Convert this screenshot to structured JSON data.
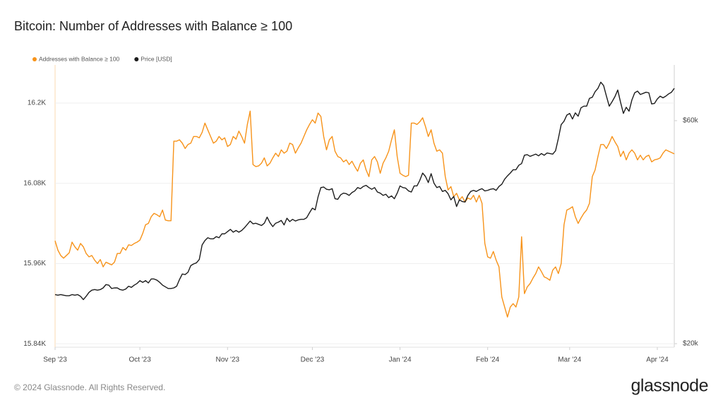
{
  "chart_data": {
    "type": "line",
    "title": "Bitcoin: Number of Addresses with Balance ≥ 100",
    "copyright": "© 2024 Glassnode. All Rights Reserved.",
    "brand": "glassnode",
    "grid": true,
    "legend": "top-left",
    "categories": [
      "Sep '23",
      null,
      null,
      null,
      null,
      null,
      null,
      null,
      null,
      null,
      null,
      null,
      null,
      null,
      null,
      null,
      null,
      null,
      null,
      null,
      null,
      null,
      null,
      null,
      null,
      null,
      null,
      null,
      null,
      null,
      "Oct '23",
      null,
      null,
      null,
      null,
      null,
      null,
      null,
      null,
      null,
      null,
      null,
      null,
      null,
      null,
      null,
      null,
      null,
      null,
      null,
      null,
      null,
      null,
      null,
      null,
      null,
      null,
      null,
      null,
      null,
      null,
      "Nov '23",
      null,
      null,
      null,
      null,
      null,
      null,
      null,
      null,
      null,
      null,
      null,
      null,
      null,
      null,
      null,
      null,
      null,
      null,
      null,
      null,
      null,
      null,
      null,
      null,
      null,
      null,
      null,
      null,
      null,
      "Dec '23",
      null,
      null,
      null,
      null,
      null,
      null,
      null,
      null,
      null,
      null,
      null,
      null,
      null,
      null,
      null,
      null,
      null,
      null,
      null,
      null,
      null,
      null,
      null,
      null,
      null,
      null,
      null,
      null,
      null,
      null,
      "Jan '24",
      null,
      null,
      null,
      null,
      null,
      null,
      null,
      null,
      null,
      null,
      null,
      null,
      null,
      null,
      null,
      null,
      null,
      null,
      null,
      null,
      null,
      null,
      null,
      null,
      null,
      null,
      null,
      null,
      null,
      null,
      "Feb '24",
      null,
      null,
      null,
      null,
      null,
      null,
      null,
      null,
      null,
      null,
      null,
      null,
      null,
      null,
      null,
      null,
      null,
      null,
      null,
      null,
      null,
      null,
      null,
      null,
      null,
      null,
      null,
      null,
      "Mar '24",
      null,
      null,
      null,
      null,
      null,
      null,
      null,
      null,
      null,
      null,
      null,
      null,
      null,
      null,
      null,
      null,
      null,
      null,
      null,
      null,
      null,
      null,
      null,
      null,
      null,
      null,
      null,
      null,
      null,
      null,
      "Apr '24",
      null,
      null,
      null,
      null,
      null,
      null
    ],
    "ylim": [
      15837,
      16257
    ],
    "yticks": [
      {
        "value": 15840,
        "label": "15.84K"
      },
      {
        "value": 15960,
        "label": "15.96K"
      },
      {
        "value": 16080,
        "label": "16.08K"
      },
      {
        "value": 16200,
        "label": "16.2K"
      }
    ],
    "y2lim": [
      19620,
      70000
    ],
    "y2ticks": [
      {
        "value": 20000,
        "label": "$20k"
      },
      {
        "value": 60000,
        "label": "$60k"
      }
    ],
    "series": [
      {
        "name": "Addresses with Balance ≥ 100",
        "color": "#f7931a",
        "values": [
          15994,
          15980,
          15972,
          15968,
          15972,
          15976,
          15992,
          15985,
          15980,
          15990,
          15985,
          15975,
          15970,
          15972,
          15965,
          15960,
          15966,
          15955,
          15962,
          15960,
          15958,
          15962,
          15975,
          15975,
          15984,
          15980,
          15988,
          15987,
          15990,
          15992,
          15995,
          16005,
          16018,
          16020,
          16030,
          16035,
          16033,
          16030,
          16040,
          16025,
          16024,
          16024,
          16143,
          16143,
          16145,
          16140,
          16132,
          16138,
          16140,
          16150,
          16150,
          16148,
          16156,
          16170,
          16160,
          16150,
          16140,
          16143,
          16150,
          16145,
          16148,
          16135,
          16138,
          16150,
          16146,
          16158,
          16150,
          16140,
          16168,
          16188,
          16108,
          16105,
          16106,
          16110,
          16118,
          16106,
          16110,
          16118,
          16125,
          16120,
          16130,
          16125,
          16128,
          16140,
          16138,
          16125,
          16133,
          16140,
          16150,
          16160,
          16168,
          16175,
          16170,
          16185,
          16180,
          16150,
          16130,
          16145,
          16150,
          16128,
          16120,
          16118,
          16112,
          16115,
          16108,
          16113,
          16105,
          16098,
          16110,
          16115,
          16100,
          16090,
          16115,
          16120,
          16112,
          16095,
          16110,
          16118,
          16128,
          16145,
          16160,
          16120,
          16095,
          16092,
          16090,
          16092,
          16170,
          16170,
          16168,
          16172,
          16178,
          16165,
          16150,
          16160,
          16140,
          16128,
          16130,
          16125,
          16090,
          16070,
          16075,
          16060,
          16065,
          16055,
          16060,
          16052,
          16058,
          16056,
          16062,
          16052,
          16062,
          16050,
          15990,
          15970,
          15968,
          15978,
          15965,
          15955,
          15910,
          15895,
          15880,
          15895,
          15900,
          15895,
          15910,
          16000,
          15915,
          15925,
          15930,
          15938,
          15945,
          15955,
          15948,
          15940,
          15938,
          15935,
          15950,
          15955,
          15945,
          15960,
          16018,
          16040,
          16042,
          16045,
          16030,
          16020,
          16028,
          16035,
          16040,
          16050,
          16090,
          16100,
          16120,
          16138,
          16138,
          16132,
          16140,
          16150,
          16142,
          16135,
          16120,
          16128,
          16115,
          16125,
          16130,
          16125,
          16115,
          16122,
          16115,
          16120,
          16122,
          16112,
          16115,
          16116,
          16118,
          16125,
          16130,
          16128,
          16126,
          16124
        ]
      },
      {
        "name": "Price [USD]",
        "color": "#1c1c1c",
        "axis": "y2",
        "values": [
          28800,
          28700,
          28800,
          28700,
          28600,
          28600,
          28800,
          28700,
          28800,
          28500,
          27900,
          28500,
          29200,
          29600,
          29700,
          29600,
          29700,
          30000,
          30600,
          30500,
          29900,
          30000,
          30000,
          29700,
          29600,
          29800,
          30300,
          30100,
          30500,
          30800,
          31300,
          31000,
          31300,
          30900,
          31600,
          31600,
          31400,
          31000,
          30500,
          30200,
          29900,
          29900,
          30000,
          30300,
          31500,
          32500,
          32400,
          32800,
          34000,
          34300,
          34500,
          35100,
          37700,
          38500,
          39000,
          38800,
          38800,
          39200,
          39000,
          39700,
          39700,
          40100,
          40500,
          40000,
          40300,
          40000,
          40300,
          40800,
          41400,
          42000,
          41500,
          41600,
          41400,
          41200,
          41600,
          42700,
          41700,
          41000,
          41600,
          41800,
          42100,
          41300,
          42500,
          41900,
          42300,
          42000,
          42200,
          42300,
          42300,
          42600,
          43500,
          44300,
          44000,
          46300,
          48000,
          48100,
          47700,
          47600,
          47800,
          46000,
          45900,
          46700,
          47000,
          46900,
          46600,
          47100,
          47400,
          48000,
          47800,
          48200,
          48400,
          48000,
          47700,
          48000,
          47200,
          47000,
          46600,
          46800,
          46200,
          46500,
          46000,
          47000,
          48300,
          48000,
          47900,
          47400,
          47200,
          48300,
          48300,
          49300,
          50600,
          50000,
          48900,
          50500,
          48800,
          48000,
          48200,
          47300,
          47500,
          46900,
          45800,
          46400,
          44600,
          45800,
          45500,
          45400,
          46600,
          47300,
          47500,
          47300,
          47600,
          47800,
          47400,
          47500,
          47700,
          47800,
          47500,
          48200,
          48600,
          49500,
          50100,
          50600,
          51200,
          51200,
          52000,
          52300,
          53800,
          53900,
          53600,
          53800,
          54000,
          53700,
          54100,
          53800,
          54200,
          54100,
          54000,
          54600,
          56800,
          59300,
          59900,
          61000,
          61300,
          60300,
          61400,
          60800,
          62300,
          62600,
          62600,
          64000,
          64200,
          65200,
          65800,
          66900,
          66300,
          64400,
          62600,
          63400,
          64300,
          65500,
          63300,
          61300,
          62400,
          61700,
          63700,
          65000,
          65300,
          64700,
          64900,
          65100,
          65000,
          63000,
          63100,
          63900,
          64400,
          64100,
          64400,
          64800,
          65100,
          65800
        ]
      }
    ]
  }
}
